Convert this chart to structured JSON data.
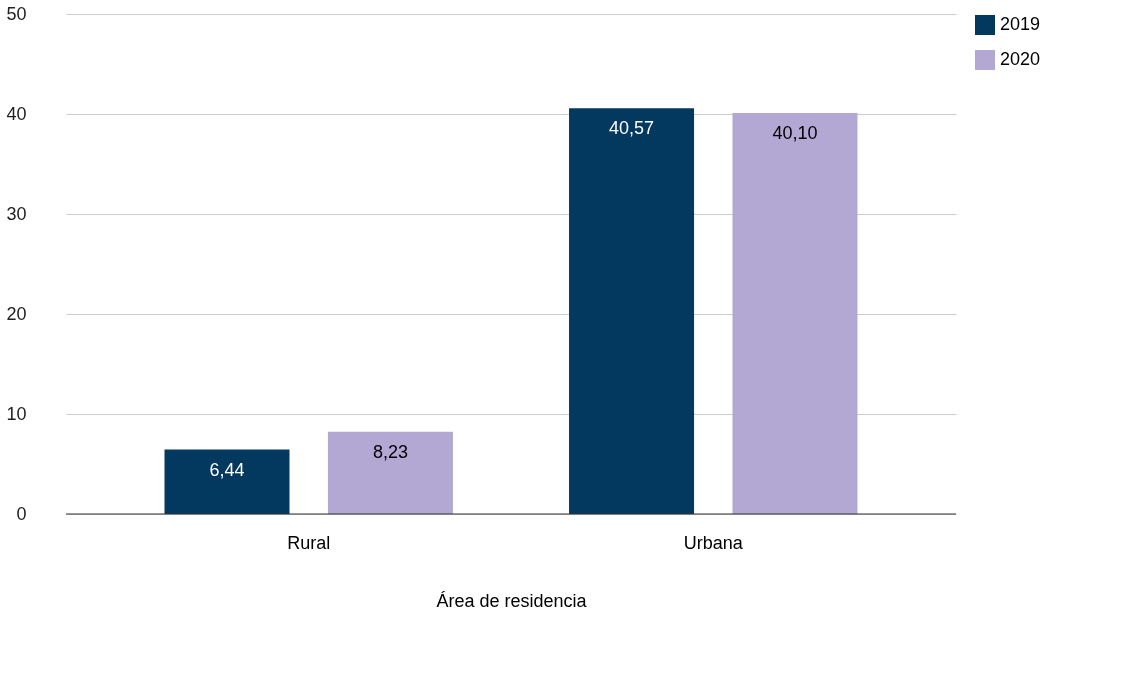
{
  "chart_data": {
    "type": "bar",
    "xlabel": "Área de residencia",
    "categories": [
      "Rural",
      "Urbana"
    ],
    "series": [
      {
        "name": "2019",
        "color": "#03385f",
        "values": [
          6.44,
          40.57
        ],
        "value_labels": [
          "6,44",
          "40,57"
        ]
      },
      {
        "name": "2020",
        "color": "#b3a8d4",
        "values": [
          8.23,
          40.1
        ],
        "value_labels": [
          "8,23",
          "40,10"
        ]
      }
    ],
    "ylim": [
      0,
      50
    ],
    "yticks": [
      0,
      10,
      20,
      30,
      40,
      50
    ],
    "grid": "y",
    "legend": "top right"
  }
}
